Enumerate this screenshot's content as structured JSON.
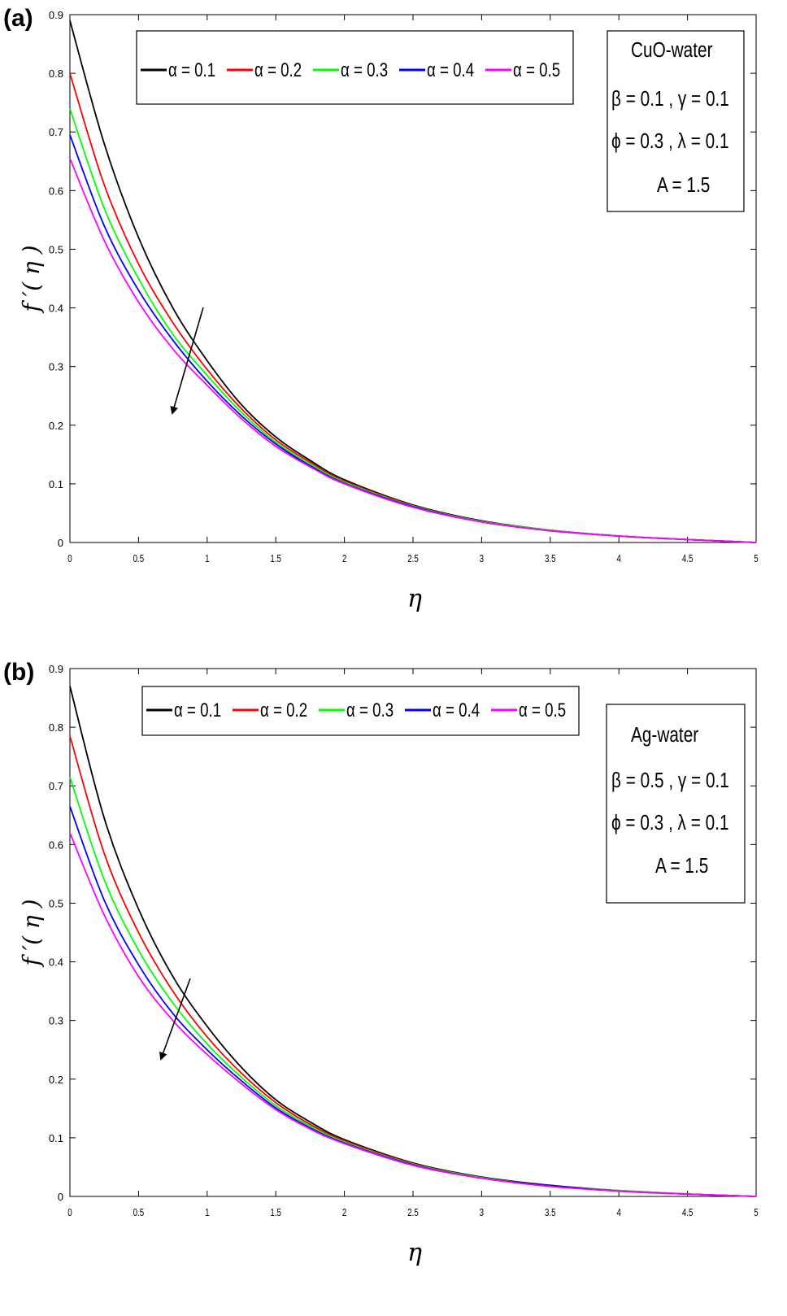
{
  "chart_data": [
    {
      "panel_label": "(a)",
      "type": "line",
      "xlabel": "η",
      "ylabel": "f ′( η )",
      "xlim": [
        0,
        5
      ],
      "ylim": [
        0,
        0.9
      ],
      "xticks": [
        "0",
        "0.5",
        "1",
        "1.5",
        "2",
        "2.5",
        "3",
        "3.5",
        "4",
        "4.5",
        "5"
      ],
      "yticks": [
        "0",
        "0.1",
        "0.2",
        "0.3",
        "0.4",
        "0.5",
        "0.6",
        "0.7",
        "0.8",
        "0.9"
      ],
      "grid": false,
      "legend_position": "top",
      "x": [
        0,
        0.25,
        0.5,
        0.75,
        1,
        1.25,
        1.5,
        1.75,
        2,
        2.5,
        3,
        3.5,
        4,
        4.5,
        5
      ],
      "series": [
        {
          "name": "α = 0.1",
          "color": "#000000",
          "values": [
            0.89,
            0.68,
            0.52,
            0.4,
            0.31,
            0.235,
            0.18,
            0.14,
            0.107,
            0.064,
            0.037,
            0.021,
            0.011,
            0.005,
            0.0
          ]
        },
        {
          "name": "α = 0.2",
          "color": "#ff0000",
          "values": [
            0.8,
            0.61,
            0.475,
            0.375,
            0.295,
            0.228,
            0.175,
            0.137,
            0.105,
            0.063,
            0.036,
            0.021,
            0.011,
            0.005,
            0.0
          ]
        },
        {
          "name": "α = 0.3",
          "color": "#00ff00",
          "values": [
            0.74,
            0.57,
            0.45,
            0.355,
            0.285,
            0.222,
            0.171,
            0.134,
            0.103,
            0.062,
            0.036,
            0.021,
            0.011,
            0.005,
            0.0
          ]
        },
        {
          "name": "α = 0.4",
          "color": "#0000ff",
          "values": [
            0.695,
            0.54,
            0.43,
            0.345,
            0.275,
            0.216,
            0.168,
            0.131,
            0.101,
            0.061,
            0.035,
            0.02,
            0.011,
            0.005,
            0.0
          ]
        },
        {
          "name": "α = 0.5",
          "color": "#ff00ff",
          "values": [
            0.655,
            0.515,
            0.41,
            0.33,
            0.268,
            0.211,
            0.164,
            0.129,
            0.1,
            0.06,
            0.035,
            0.02,
            0.011,
            0.005,
            0.0
          ]
        }
      ],
      "annotation": {
        "title": "CuO-water",
        "line1": "β = 0.1 , γ = 0.1",
        "line2": "ϕ = 0.3 , λ = 0.1",
        "line3": "A = 1.5"
      }
    },
    {
      "panel_label": "(b)",
      "type": "line",
      "xlabel": "η",
      "ylabel": "f ′( η )",
      "xlim": [
        0,
        5
      ],
      "ylim": [
        0,
        0.9
      ],
      "xticks": [
        "0",
        "0.5",
        "1",
        "1.5",
        "2",
        "2.5",
        "3",
        "3.5",
        "4",
        "4.5",
        "5"
      ],
      "yticks": [
        "0",
        "0.1",
        "0.2",
        "0.3",
        "0.4",
        "0.5",
        "0.6",
        "0.7",
        "0.8",
        "0.9"
      ],
      "grid": false,
      "legend_position": "top",
      "x": [
        0,
        0.25,
        0.5,
        0.75,
        1,
        1.25,
        1.5,
        1.75,
        2,
        2.5,
        3,
        3.5,
        4,
        4.5,
        5
      ],
      "series": [
        {
          "name": "α = 0.1",
          "color": "#000000",
          "values": [
            0.87,
            0.645,
            0.49,
            0.375,
            0.29,
            0.22,
            0.165,
            0.127,
            0.097,
            0.057,
            0.033,
            0.019,
            0.01,
            0.004,
            0.0
          ]
        },
        {
          "name": "α = 0.2",
          "color": "#ff0000",
          "values": [
            0.785,
            0.585,
            0.45,
            0.35,
            0.272,
            0.21,
            0.16,
            0.123,
            0.095,
            0.056,
            0.032,
            0.018,
            0.01,
            0.004,
            0.0
          ]
        },
        {
          "name": "α = 0.3",
          "color": "#00ff00",
          "values": [
            0.715,
            0.54,
            0.42,
            0.33,
            0.26,
            0.203,
            0.155,
            0.12,
            0.093,
            0.055,
            0.032,
            0.018,
            0.01,
            0.004,
            0.0
          ]
        },
        {
          "name": "α = 0.4",
          "color": "#0000ff",
          "values": [
            0.665,
            0.505,
            0.395,
            0.312,
            0.25,
            0.197,
            0.151,
            0.117,
            0.091,
            0.054,
            0.031,
            0.018,
            0.009,
            0.004,
            0.0
          ]
        },
        {
          "name": "α = 0.5",
          "color": "#ff00ff",
          "values": [
            0.62,
            0.48,
            0.375,
            0.3,
            0.242,
            0.192,
            0.148,
            0.115,
            0.09,
            0.053,
            0.031,
            0.017,
            0.009,
            0.004,
            0.0
          ]
        }
      ],
      "annotation": {
        "title": "Ag-water",
        "line1": "β = 0.5 , γ = 0.1",
        "line2": "ϕ = 0.3 , λ = 0.1",
        "line3": "A = 1.5"
      }
    }
  ]
}
